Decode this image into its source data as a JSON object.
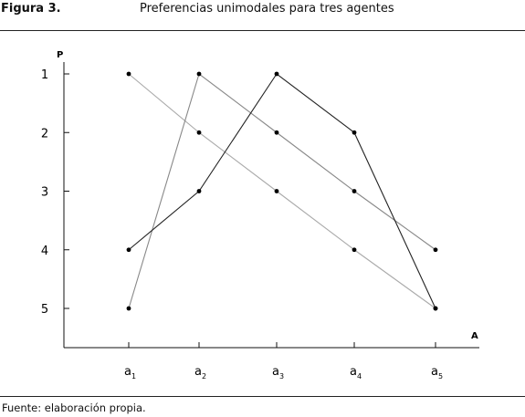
{
  "figure": {
    "label": "Figura 3.",
    "title": "Preferencias unimodales para tres agentes",
    "source": "Fuente: elaboración propia."
  },
  "chart_data": {
    "type": "line",
    "xlabel": "A",
    "ylabel": "P",
    "categories": [
      "a1",
      "a2",
      "a3",
      "a4",
      "a5"
    ],
    "x_tick_labels": [
      {
        "base": "a",
        "sub": "1"
      },
      {
        "base": "a",
        "sub": "2"
      },
      {
        "base": "a",
        "sub": "3"
      },
      {
        "base": "a",
        "sub": "4"
      },
      {
        "base": "a",
        "sub": "5"
      }
    ],
    "y_ticks": [
      1,
      2,
      3,
      4,
      5
    ],
    "y_inverted": true,
    "grid": false,
    "series": [
      {
        "values": [
          1,
          2,
          3,
          4,
          5
        ],
        "color": "#aaaaaa"
      },
      {
        "values": [
          5,
          1,
          2,
          3,
          4
        ],
        "color": "#888888"
      },
      {
        "values": [
          4,
          3,
          1,
          2,
          5
        ],
        "color": "#222222"
      }
    ]
  }
}
